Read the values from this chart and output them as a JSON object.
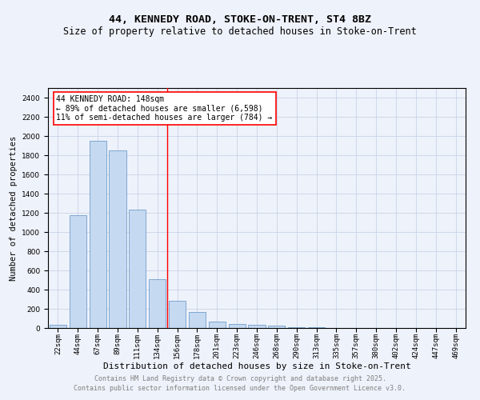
{
  "title1": "44, KENNEDY ROAD, STOKE-ON-TRENT, ST4 8BZ",
  "title2": "Size of property relative to detached houses in Stoke-on-Trent",
  "xlabel": "Distribution of detached houses by size in Stoke-on-Trent",
  "ylabel": "Number of detached properties",
  "categories": [
    "22sqm",
    "44sqm",
    "67sqm",
    "89sqm",
    "111sqm",
    "134sqm",
    "156sqm",
    "178sqm",
    "201sqm",
    "223sqm",
    "246sqm",
    "268sqm",
    "290sqm",
    "313sqm",
    "335sqm",
    "357sqm",
    "380sqm",
    "402sqm",
    "424sqm",
    "447sqm",
    "469sqm"
  ],
  "values": [
    30,
    1175,
    1950,
    1850,
    1230,
    505,
    280,
    165,
    70,
    40,
    30,
    25,
    10,
    5,
    2,
    1,
    1,
    0,
    0,
    0,
    0
  ],
  "bar_color": "#c5d9f1",
  "bar_edge_color": "#5a8fc4",
  "grid_color": "#c8d4e8",
  "background_color": "#eef2fa",
  "vline_x": 5.5,
  "vline_color": "red",
  "annotation_text": "44 KENNEDY ROAD: 148sqm\n← 89% of detached houses are smaller (6,598)\n11% of semi-detached houses are larger (784) →",
  "annotation_box_color": "white",
  "annotation_box_edge": "red",
  "footnote1": "Contains HM Land Registry data © Crown copyright and database right 2025.",
  "footnote2": "Contains public sector information licensed under the Open Government Licence v3.0.",
  "ylim": [
    0,
    2500
  ],
  "yticks": [
    0,
    200,
    400,
    600,
    800,
    1000,
    1200,
    1400,
    1600,
    1800,
    2000,
    2200,
    2400
  ],
  "title1_fontsize": 9.5,
  "title2_fontsize": 8.5,
  "xlabel_fontsize": 8,
  "ylabel_fontsize": 7.5,
  "tick_fontsize": 6.5,
  "annotation_fontsize": 7,
  "footnote_fontsize": 6
}
